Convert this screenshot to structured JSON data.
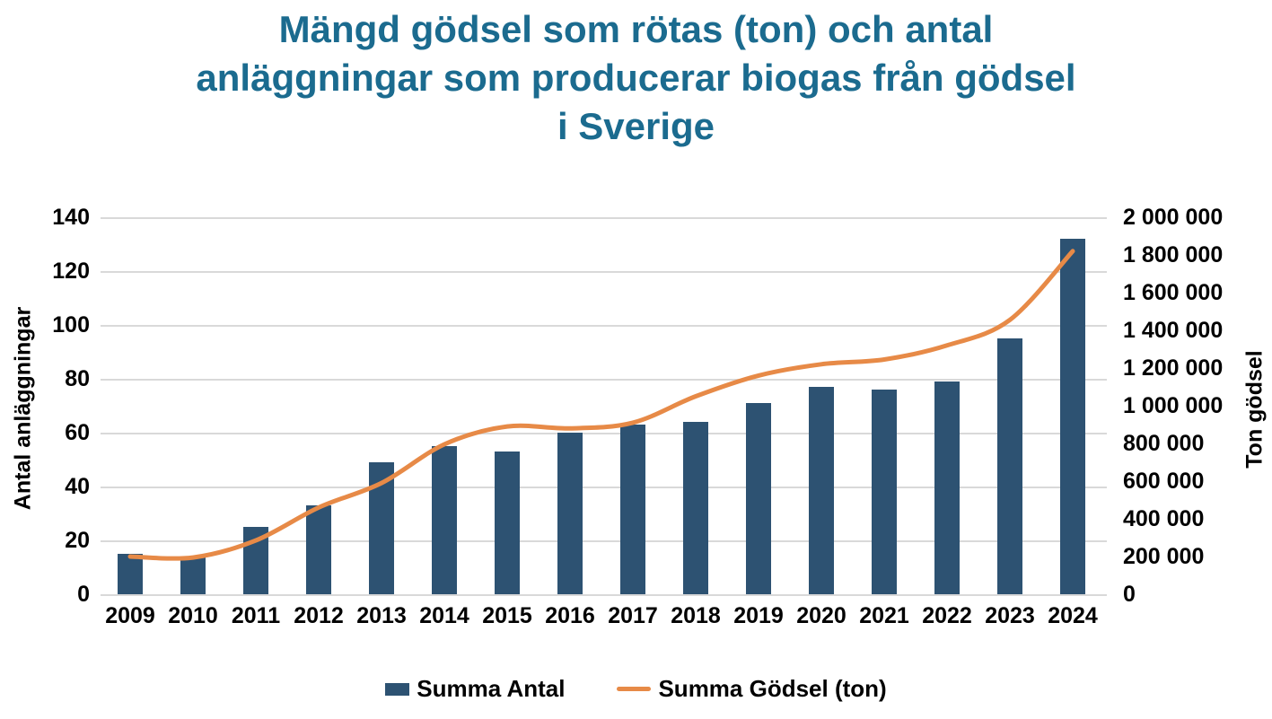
{
  "chart_data": {
    "type": "bar+line",
    "title": "Mängd gödsel som rötas (ton) och antal anläggningar som producerar biogas från gödsel i Sverige",
    "title_lines": [
      "Mängd gödsel som rötas (ton) och antal",
      "anläggningar som producerar biogas från gödsel",
      "i Sverige"
    ],
    "categories": [
      "2009",
      "2010",
      "2011",
      "2012",
      "2013",
      "2014",
      "2015",
      "2016",
      "2017",
      "2018",
      "2019",
      "2020",
      "2021",
      "2022",
      "2023",
      "2024"
    ],
    "series": [
      {
        "name": "Summa Antal",
        "type": "bar",
        "axis": "left",
        "color": "#2D5272",
        "values": [
          15,
          14,
          25,
          33,
          49,
          55,
          53,
          60,
          63,
          64,
          71,
          77,
          76,
          79,
          95,
          132
        ]
      },
      {
        "name": "Summa Gödsel (ton)",
        "type": "line",
        "axis": "right",
        "color": "#E78A47",
        "values": [
          200000,
          195000,
          285000,
          460000,
          590000,
          795000,
          890000,
          880000,
          910000,
          1050000,
          1160000,
          1220000,
          1245000,
          1320000,
          1455000,
          1820000
        ]
      }
    ],
    "axes": {
      "left": {
        "label": "Antal anläggningar",
        "min": 0,
        "max": 140,
        "step": 20
      },
      "right": {
        "label": "Ton gödsel",
        "min": 0,
        "max": 2000000,
        "step": 200000,
        "tick_format": "space-grouped"
      }
    },
    "grid": true,
    "legend_position": "bottom",
    "colors": {
      "title": "#1B6B8F",
      "bar": "#2D5272",
      "line": "#E78A47",
      "gridline": "#D9D9D9",
      "axis_text": "#000000",
      "background": "#FFFFFF"
    }
  }
}
